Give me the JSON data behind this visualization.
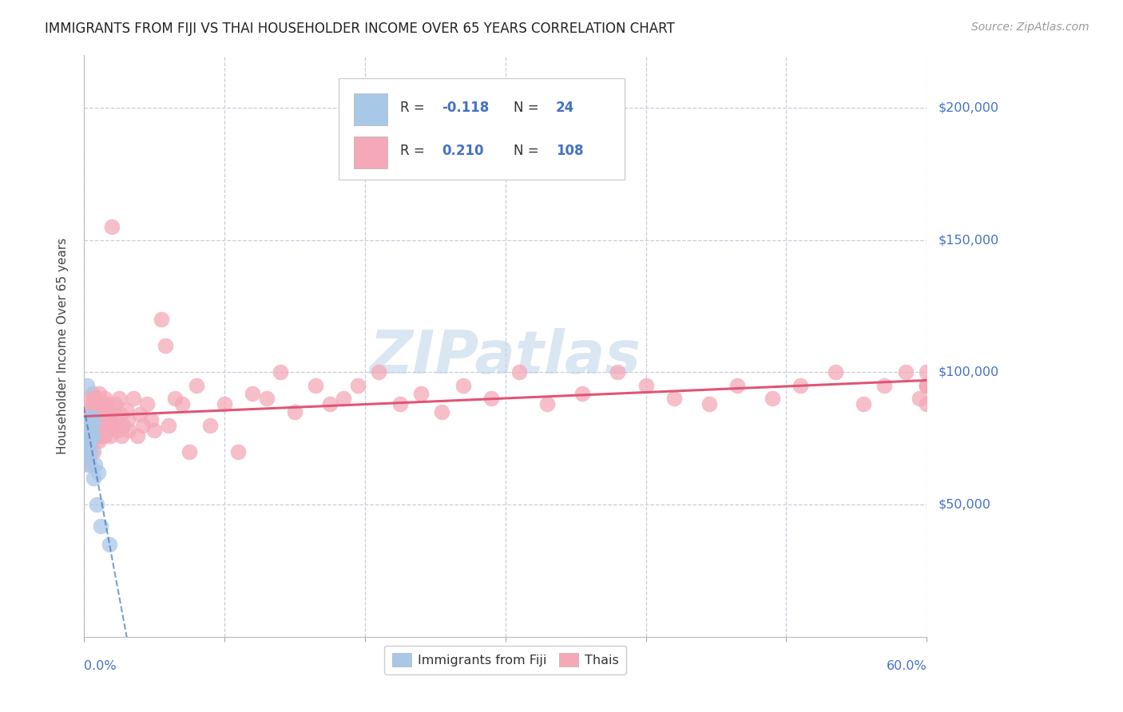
{
  "title": "IMMIGRANTS FROM FIJI VS THAI HOUSEHOLDER INCOME OVER 65 YEARS CORRELATION CHART",
  "source": "Source: ZipAtlas.com",
  "ylabel": "Householder Income Over 65 years",
  "ytick_labels": [
    "$50,000",
    "$100,000",
    "$150,000",
    "$200,000"
  ],
  "ytick_vals": [
    50000,
    100000,
    150000,
    200000
  ],
  "ylim": [
    0,
    220000
  ],
  "xlim": [
    0.0,
    0.6
  ],
  "xtick_left_label": "0.0%",
  "xtick_right_label": "60.0%",
  "fiji_R": -0.118,
  "fiji_N": 24,
  "thai_R": 0.21,
  "thai_N": 108,
  "fiji_color": "#a8c8e8",
  "thai_color": "#f4a8b8",
  "fiji_line_color": "#4472c4",
  "thai_line_color": "#e05575",
  "fiji_scatter_x": [
    0.001,
    0.002,
    0.002,
    0.002,
    0.003,
    0.003,
    0.003,
    0.003,
    0.004,
    0.004,
    0.004,
    0.005,
    0.005,
    0.005,
    0.005,
    0.006,
    0.006,
    0.007,
    0.007,
    0.008,
    0.009,
    0.01,
    0.012,
    0.018
  ],
  "fiji_scatter_y": [
    75000,
    95000,
    78000,
    68000,
    80000,
    77000,
    72000,
    65000,
    83000,
    79000,
    74000,
    82000,
    78000,
    75000,
    70000,
    80000,
    76000,
    83000,
    60000,
    65000,
    50000,
    62000,
    42000,
    35000
  ],
  "thai_scatter_x": [
    0.002,
    0.002,
    0.003,
    0.003,
    0.003,
    0.004,
    0.004,
    0.004,
    0.005,
    0.005,
    0.005,
    0.006,
    0.006,
    0.006,
    0.007,
    0.007,
    0.007,
    0.007,
    0.008,
    0.008,
    0.008,
    0.009,
    0.009,
    0.01,
    0.01,
    0.01,
    0.011,
    0.011,
    0.011,
    0.012,
    0.012,
    0.012,
    0.013,
    0.013,
    0.014,
    0.014,
    0.015,
    0.015,
    0.016,
    0.016,
    0.017,
    0.018,
    0.018,
    0.019,
    0.02,
    0.02,
    0.021,
    0.022,
    0.023,
    0.024,
    0.025,
    0.026,
    0.027,
    0.028,
    0.03,
    0.031,
    0.032,
    0.035,
    0.038,
    0.04,
    0.042,
    0.045,
    0.048,
    0.05,
    0.055,
    0.058,
    0.06,
    0.065,
    0.07,
    0.075,
    0.08,
    0.09,
    0.1,
    0.11,
    0.12,
    0.13,
    0.14,
    0.15,
    0.165,
    0.175,
    0.185,
    0.195,
    0.21,
    0.225,
    0.24,
    0.255,
    0.27,
    0.29,
    0.31,
    0.33,
    0.355,
    0.38,
    0.4,
    0.42,
    0.445,
    0.465,
    0.49,
    0.51,
    0.535,
    0.555,
    0.57,
    0.585,
    0.595,
    0.6,
    0.6,
    0.6,
    0.6,
    0.6
  ],
  "thai_scatter_y": [
    68000,
    75000,
    80000,
    72000,
    85000,
    78000,
    90000,
    65000,
    82000,
    76000,
    88000,
    80000,
    74000,
    92000,
    78000,
    84000,
    70000,
    86000,
    80000,
    76000,
    90000,
    82000,
    78000,
    88000,
    76000,
    84000,
    80000,
    92000,
    74000,
    86000,
    78000,
    82000,
    88000,
    76000,
    80000,
    84000,
    90000,
    76000,
    82000,
    88000,
    78000,
    84000,
    80000,
    76000,
    155000,
    85000,
    80000,
    88000,
    82000,
    78000,
    90000,
    84000,
    76000,
    80000,
    86000,
    82000,
    78000,
    90000,
    76000,
    84000,
    80000,
    88000,
    82000,
    78000,
    120000,
    110000,
    80000,
    90000,
    88000,
    70000,
    95000,
    80000,
    88000,
    70000,
    92000,
    90000,
    100000,
    85000,
    95000,
    88000,
    90000,
    95000,
    100000,
    88000,
    92000,
    85000,
    95000,
    90000,
    100000,
    88000,
    92000,
    100000,
    95000,
    90000,
    88000,
    95000,
    90000,
    95000,
    100000,
    88000,
    95000,
    100000,
    90000,
    95000,
    88000,
    95000,
    100000,
    95000
  ],
  "watermark": "ZIPatlas",
  "background_color": "#ffffff",
  "grid_color": "#ccccdd",
  "title_color": "#222222",
  "axis_color": "#4472c4",
  "legend_label_fiji": "Immigrants from Fiji",
  "legend_label_thai": "Thais"
}
